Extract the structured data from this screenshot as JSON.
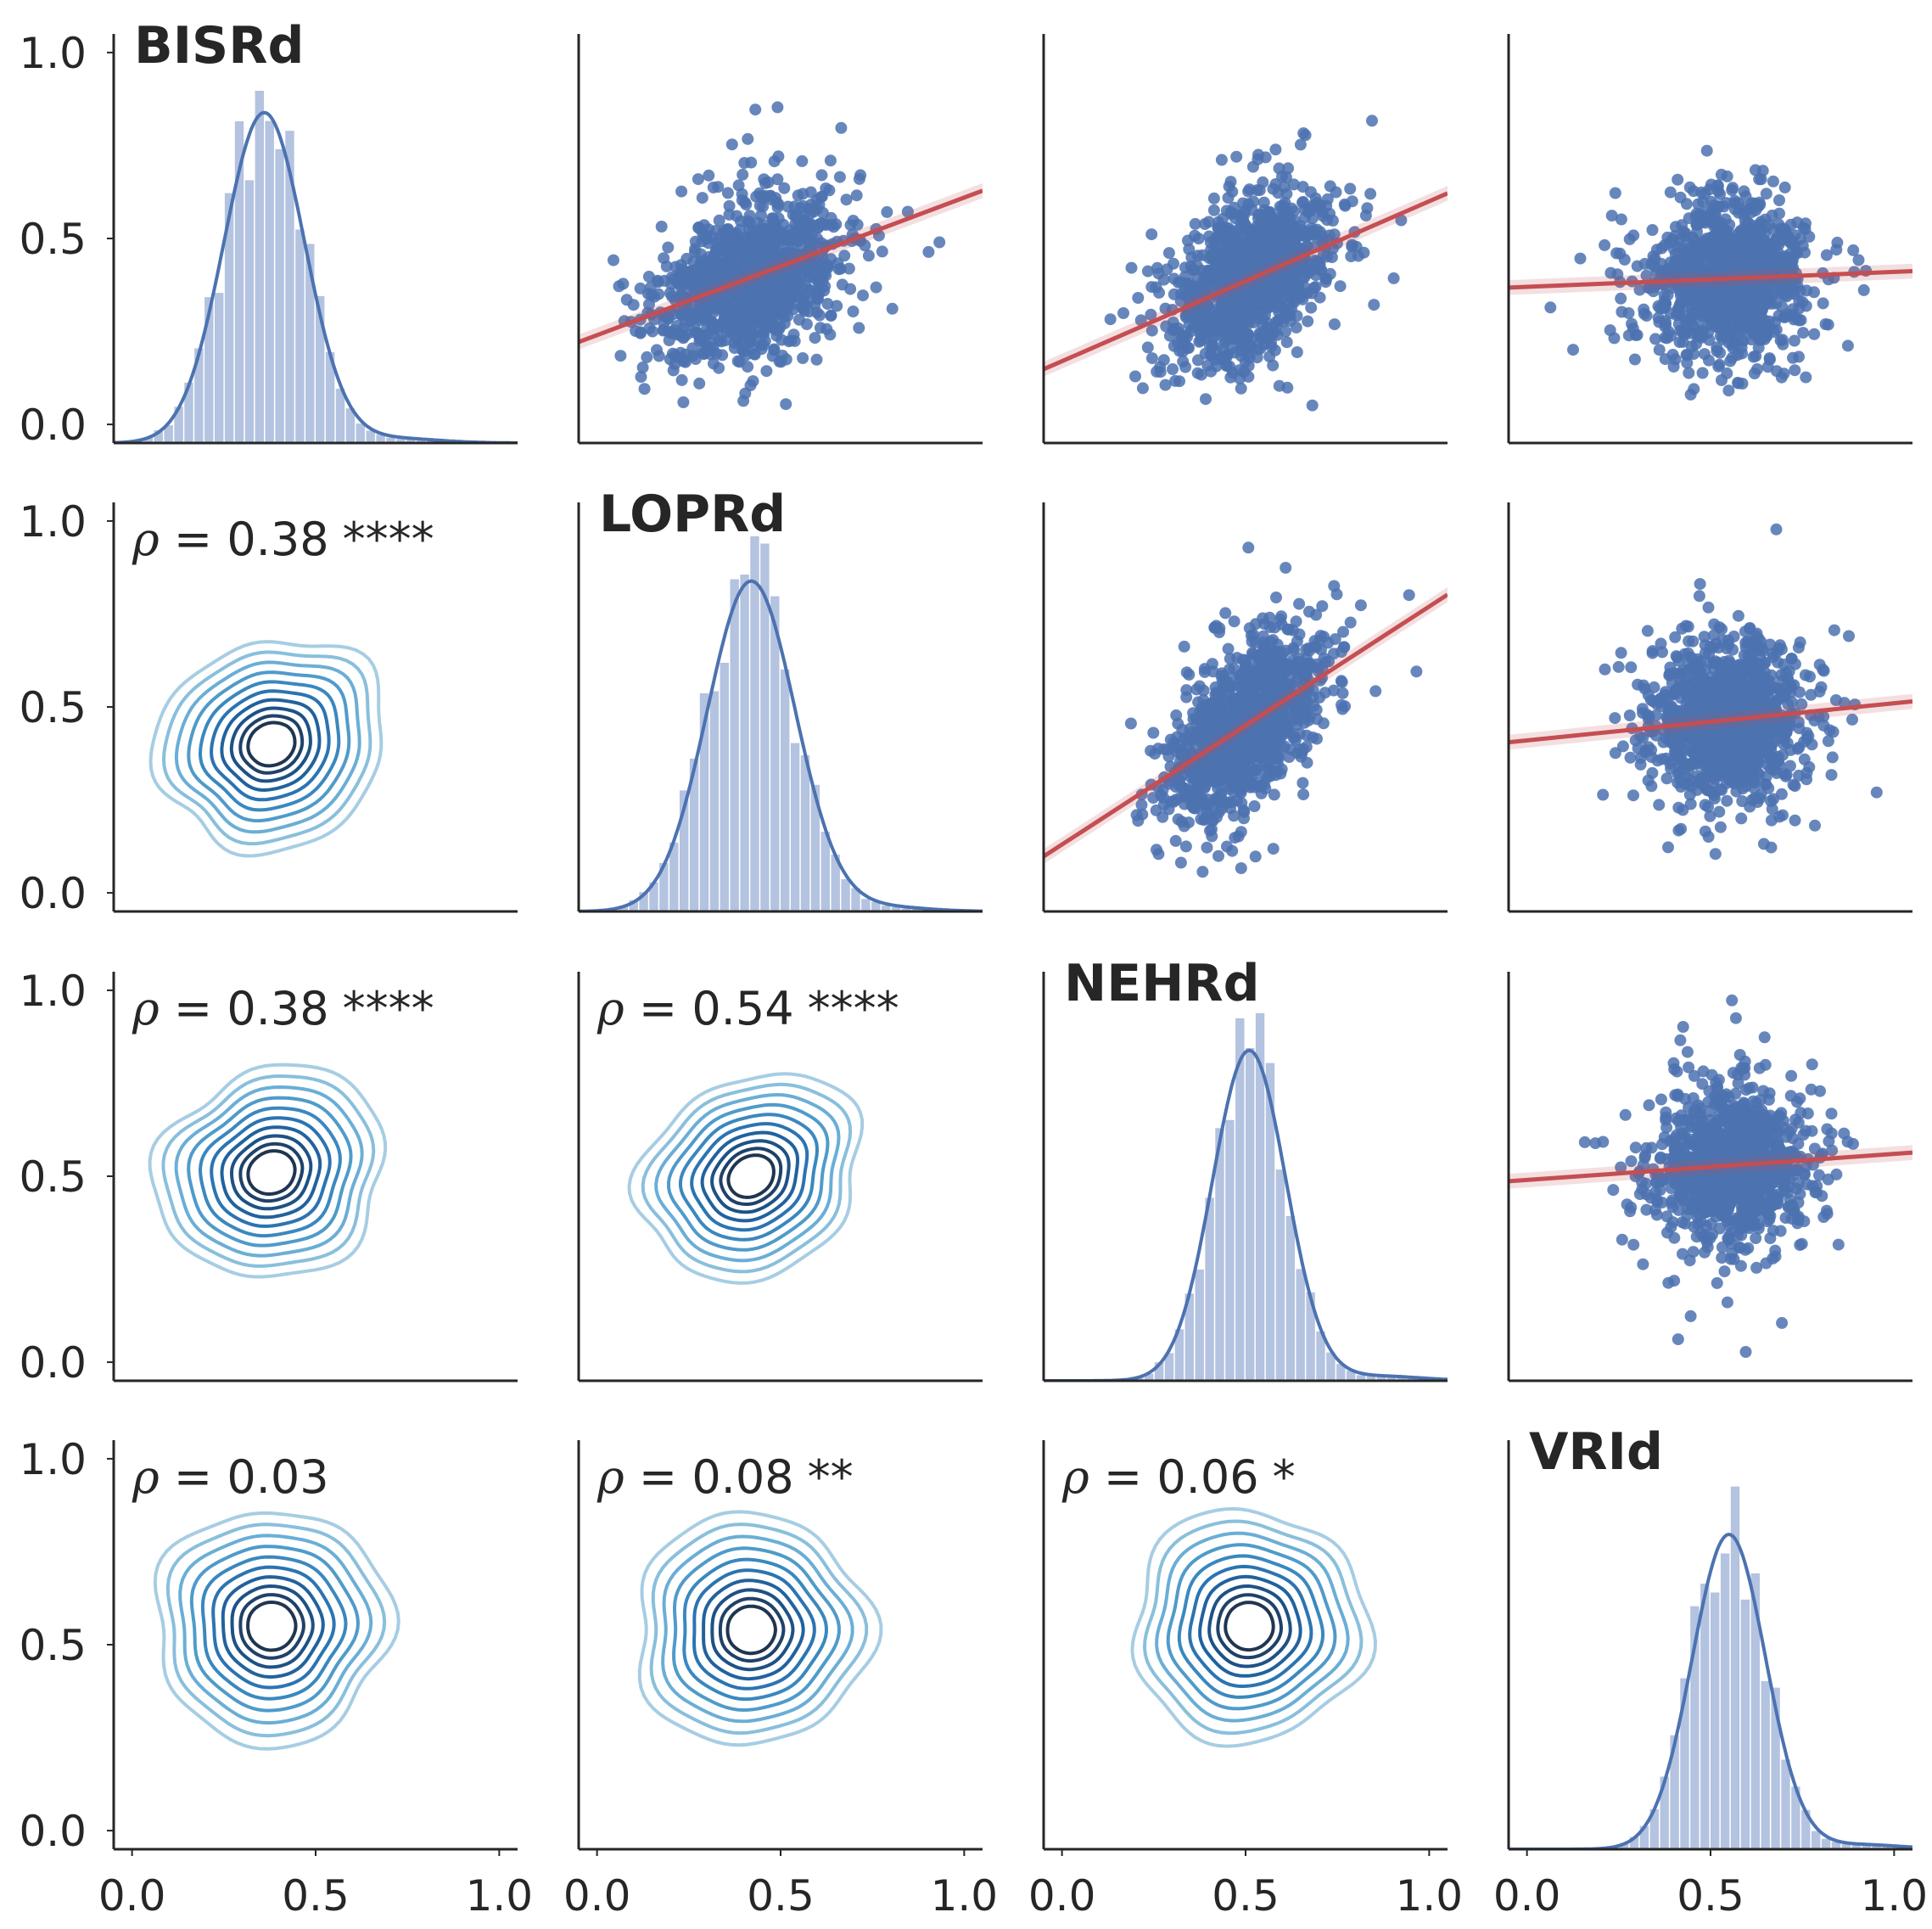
{
  "chart_data": {
    "type": "pairplot",
    "variables": [
      "BISRd",
      "LOPRd",
      "NEHRd",
      "VRId"
    ],
    "axis_range": [
      -0.05,
      1.05
    ],
    "ticks": [
      0.0,
      0.5,
      1.0
    ],
    "tick_labels": [
      "0.0",
      "0.5",
      "1.0"
    ],
    "diagonal": {
      "kind": "histogram+kde",
      "hist_color": "#b3c3e0",
      "kde_color": "#4c72b0",
      "modes": [
        0.36,
        0.42,
        0.51,
        0.55
      ],
      "peak_density": [
        0.85,
        0.85,
        0.85,
        0.81
      ]
    },
    "upper": {
      "kind": "scatter+regression",
      "point_color": "#4c72b0",
      "line_color": "#c44e52",
      "regressions": [
        {
          "x": "LOPRd",
          "y": "BISRd",
          "y_at_x0": 0.24,
          "y_at_x1": 0.61
        },
        {
          "x": "NEHRd",
          "y": "BISRd",
          "y_at_x0": 0.17,
          "y_at_x1": 0.6
        },
        {
          "x": "VRId",
          "y": "BISRd",
          "y_at_x0": 0.37,
          "y_at_x1": 0.41
        },
        {
          "x": "NEHRd",
          "y": "LOPRd",
          "y_at_x0": 0.13,
          "y_at_x1": 0.77
        },
        {
          "x": "VRId",
          "y": "LOPRd",
          "y_at_x0": 0.41,
          "y_at_x1": 0.51
        },
        {
          "x": "VRId",
          "y": "NEHRd",
          "y_at_x0": 0.49,
          "y_at_x1": 0.56
        }
      ]
    },
    "lower": {
      "kind": "kde-contour",
      "colors": [
        "#a6cde3",
        "#89bfdc",
        "#6aaed6",
        "#4f9bca",
        "#3a88bf",
        "#2b74b2",
        "#21629e",
        "#1d5286",
        "#1f426a",
        "#203550"
      ],
      "correlations": [
        {
          "x": "BISRd",
          "y": "LOPRd",
          "rho": "0.38",
          "stars": "****",
          "center": [
            0.38,
            0.4
          ]
        },
        {
          "x": "BISRd",
          "y": "NEHRd",
          "rho": "0.38",
          "stars": "****",
          "center": [
            0.38,
            0.51
          ]
        },
        {
          "x": "LOPRd",
          "y": "NEHRd",
          "rho": "0.54",
          "stars": "****",
          "center": [
            0.42,
            0.5
          ]
        },
        {
          "x": "BISRd",
          "y": "VRId",
          "rho": "0.03",
          "stars": "",
          "center": [
            0.38,
            0.55
          ]
        },
        {
          "x": "LOPRd",
          "y": "VRId",
          "rho": "0.08",
          "stars": "**",
          "center": [
            0.42,
            0.54
          ]
        },
        {
          "x": "NEHRd",
          "y": "VRId",
          "rho": "0.06",
          "stars": "*",
          "center": [
            0.51,
            0.55
          ]
        }
      ]
    }
  },
  "labels": {
    "rho_symbol": "ρ",
    "rho_equals": " = ",
    "y_ticks": [
      "0.0",
      "0.5",
      "1.0"
    ],
    "x_ticks": [
      "0.0",
      "0.5",
      "1.0"
    ]
  }
}
